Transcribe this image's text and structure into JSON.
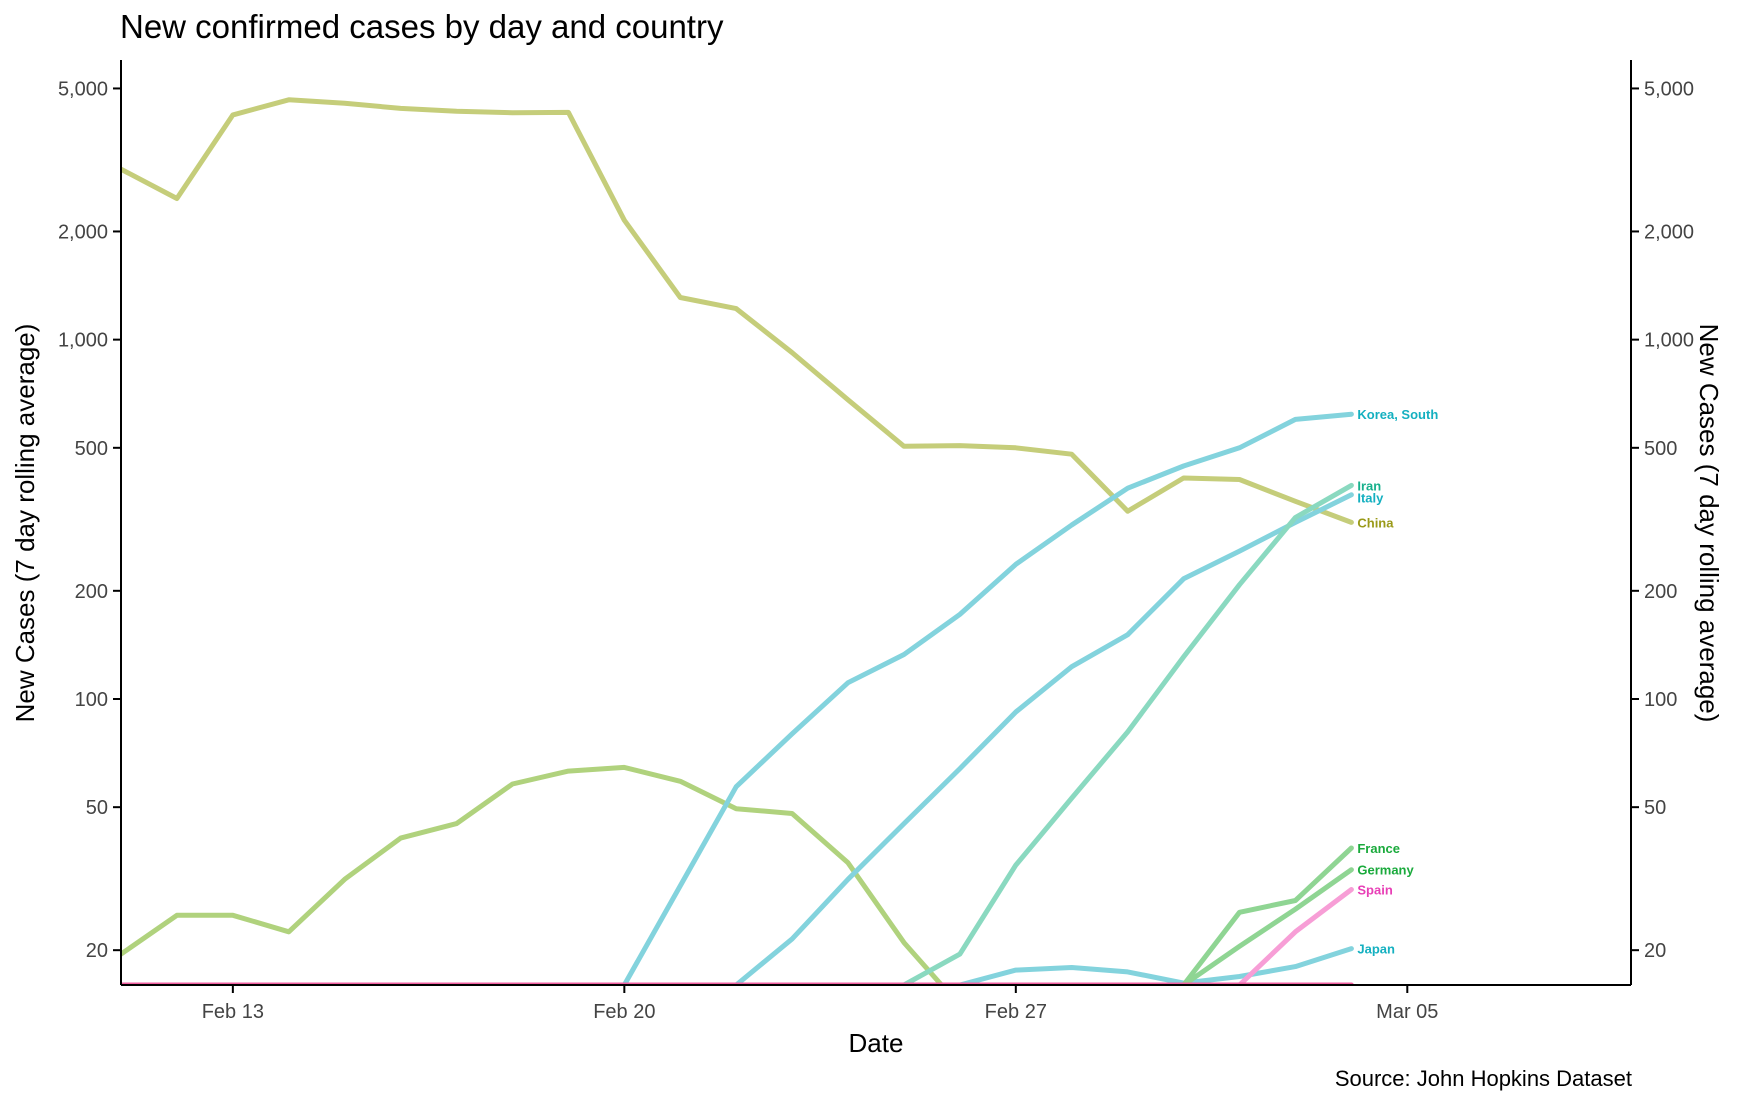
{
  "chart_data": {
    "type": "line",
    "title": "New confirmed cases by day and country",
    "xlabel": "Date",
    "ylabel": "New Cases (7 day rolling average)",
    "ylabel_right": "New Cases (7 day rolling average)",
    "caption": "Source: John Hopkins Dataset",
    "y_scale": "log10",
    "ylim": [
      16,
      6000
    ],
    "y_ticks": [
      20,
      50,
      100,
      200,
      500,
      1000,
      2000,
      5000
    ],
    "y_tick_labels": [
      "20",
      "50",
      "100",
      "200",
      "500",
      "1,000",
      "2,000",
      "5,000"
    ],
    "xlim": [
      "2020-02-11",
      "2020-03-09"
    ],
    "x_ticks": [
      "2020-02-13",
      "2020-02-20",
      "2020-02-27",
      "2020-03-05"
    ],
    "x_tick_labels": [
      "Feb 13",
      "Feb 20",
      "Feb 27",
      "Mar 05"
    ],
    "grid": false,
    "legend": "direct labels at line ends",
    "series": [
      {
        "name": "China",
        "color": "#c5cd7a",
        "label_color": "#9a9a18",
        "x": [
          "2020-02-11",
          "2020-02-12",
          "2020-02-13",
          "2020-02-14",
          "2020-02-15",
          "2020-02-16",
          "2020-02-17",
          "2020-02-18",
          "2020-02-19",
          "2020-02-20",
          "2020-02-21",
          "2020-02-22",
          "2020-02-23",
          "2020-02-24",
          "2020-02-25",
          "2020-02-26",
          "2020-02-27",
          "2020-02-28",
          "2020-02-29",
          "2020-03-01",
          "2020-03-02",
          "2020-03-03",
          "2020-03-04"
        ],
        "values": [
          2980,
          2470,
          4220,
          4650,
          4550,
          4400,
          4320,
          4280,
          4290,
          2150,
          1310,
          1220,
          920,
          680,
          505,
          507,
          500,
          480,
          333,
          412,
          408,
          355,
          310
        ]
      },
      {
        "name": "",
        "color": "#b0d27d",
        "label_color": "",
        "x": [
          "2020-02-11",
          "2020-02-12",
          "2020-02-13",
          "2020-02-14",
          "2020-02-15",
          "2020-02-16",
          "2020-02-17",
          "2020-02-18",
          "2020-02-19",
          "2020-02-20",
          "2020-02-21",
          "2020-02-22",
          "2020-02-23",
          "2020-02-24",
          "2020-02-25",
          "2020-02-26"
        ],
        "values": [
          19.5,
          25,
          25,
          22.5,
          31.5,
          41,
          45,
          58,
          63,
          64.5,
          59,
          49.5,
          48,
          35,
          21,
          14
        ]
      },
      {
        "name": "Korea, South",
        "color": "#83d3dd",
        "label_color": "#14b0c0",
        "x": [
          "2020-02-20",
          "2020-02-22",
          "2020-02-23",
          "2020-02-24",
          "2020-02-25",
          "2020-02-26",
          "2020-02-27",
          "2020-02-28",
          "2020-02-29",
          "2020-03-01",
          "2020-03-02",
          "2020-03-03",
          "2020-03-04"
        ],
        "values": [
          16,
          57,
          80,
          111,
          133,
          172,
          237,
          305,
          386,
          445,
          500,
          600,
          620
        ]
      },
      {
        "name": "Italy",
        "color": "#83d3dd",
        "label_color": "#14b0c0",
        "x": [
          "2020-02-22",
          "2020-02-23",
          "2020-02-24",
          "2020-02-25",
          "2020-02-26",
          "2020-02-27",
          "2020-02-28",
          "2020-02-29",
          "2020-03-01",
          "2020-03-02",
          "2020-03-03",
          "2020-03-04"
        ],
        "values": [
          16,
          21.5,
          31.5,
          45,
          64,
          92,
          123,
          151,
          216,
          258,
          310,
          370
        ]
      },
      {
        "name": "Iran",
        "color": "#8ad9c0",
        "label_color": "#17b08c",
        "x": [
          "2020-02-25",
          "2020-02-26",
          "2020-02-27",
          "2020-02-28",
          "2020-02-29",
          "2020-03-01",
          "2020-03-02",
          "2020-03-03",
          "2020-03-04"
        ],
        "values": [
          16,
          19.5,
          34.5,
          53,
          81,
          131,
          208,
          320,
          393
        ]
      },
      {
        "name": "Japan",
        "color": "#83d3dd",
        "label_color": "#14b0c0",
        "x": [
          "2020-02-26",
          "2020-02-27",
          "2020-02-28",
          "2020-02-29",
          "2020-03-01",
          "2020-03-02",
          "2020-03-03",
          "2020-03-04"
        ],
        "values": [
          16,
          17.6,
          17.9,
          17.4,
          16.2,
          16.9,
          18,
          20.2
        ]
      },
      {
        "name": "France",
        "color": "#8fd593",
        "label_color": "#1aaa3c",
        "x": [
          "2020-03-01",
          "2020-03-02",
          "2020-03-03",
          "2020-03-04"
        ],
        "values": [
          16,
          25.5,
          27.5,
          38.5
        ]
      },
      {
        "name": "Germany",
        "color": "#8fd593",
        "label_color": "#1aaa3c",
        "x": [
          "2020-03-01",
          "2020-03-02",
          "2020-03-03",
          "2020-03-04"
        ],
        "values": [
          16,
          20.5,
          26,
          33.5
        ]
      },
      {
        "name": "Spain",
        "color": "#f79ed6",
        "label_color": "#e83fb6",
        "x": [
          "2020-03-02",
          "2020-03-03",
          "2020-03-04"
        ],
        "values": [
          16,
          22.5,
          29.5
        ]
      },
      {
        "name": "",
        "color": "#ef5fa0",
        "label_color": "",
        "x": [
          "2020-02-11",
          "2020-03-04"
        ],
        "values": [
          16,
          16
        ]
      }
    ]
  }
}
